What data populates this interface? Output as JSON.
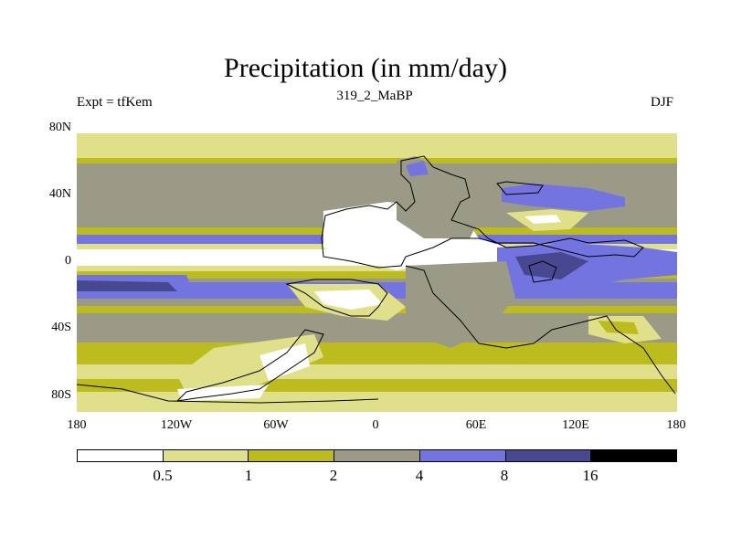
{
  "title": "Precipitation (in mm/day)",
  "subtitle_left": "Expt = tfKem",
  "subtitle_center": "319_2_MaBP",
  "subtitle_right": "DJF",
  "y_ticks": [
    "80N",
    "40N",
    "0",
    "40S",
    "80S"
  ],
  "x_ticks": [
    "180",
    "120W",
    "60W",
    "0",
    "60E",
    "120E",
    "180"
  ],
  "colorbar": {
    "labels": [
      "0.5",
      "1",
      "2",
      "4",
      "8",
      "16"
    ],
    "colors": [
      "#ffffff",
      "#e0e08a",
      "#bcbc1e",
      "#9a9a86",
      "#7474e0",
      "#484890",
      "#000000"
    ]
  }
}
